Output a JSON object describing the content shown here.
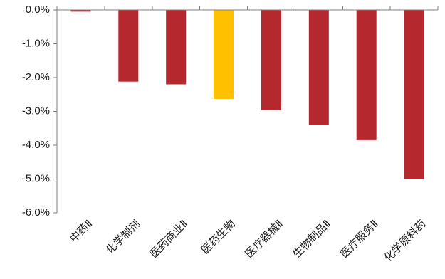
{
  "chart_data": {
    "type": "bar",
    "categories": [
      "中药Ⅱ",
      "化学制剂",
      "医药商业Ⅱ",
      "医药生物",
      "医疗器械Ⅱ",
      "生物制品Ⅱ",
      "医疗服务Ⅱ",
      "化学原料药"
    ],
    "values": [
      -0.05,
      -2.12,
      -2.2,
      -2.63,
      -2.96,
      -3.41,
      -3.85,
      -5.0
    ],
    "bar_colors": [
      "#b5282e",
      "#b5282e",
      "#b5282e",
      "#ffc000",
      "#b5282e",
      "#b5282e",
      "#b5282e",
      "#b5282e"
    ],
    "ylim": [
      -6.0,
      0.0
    ],
    "yticks": [
      0.0,
      -1.0,
      -2.0,
      -3.0,
      -4.0,
      -5.0,
      -6.0
    ],
    "ytick_labels": [
      "0.0%",
      "-1.0%",
      "-2.0%",
      "-3.0%",
      "-4.0%",
      "-5.0%",
      "-6.0%"
    ],
    "title": "",
    "xlabel": "",
    "ylabel": "",
    "grid": false,
    "legend": "none",
    "axis_color": "#7f7f7f"
  }
}
